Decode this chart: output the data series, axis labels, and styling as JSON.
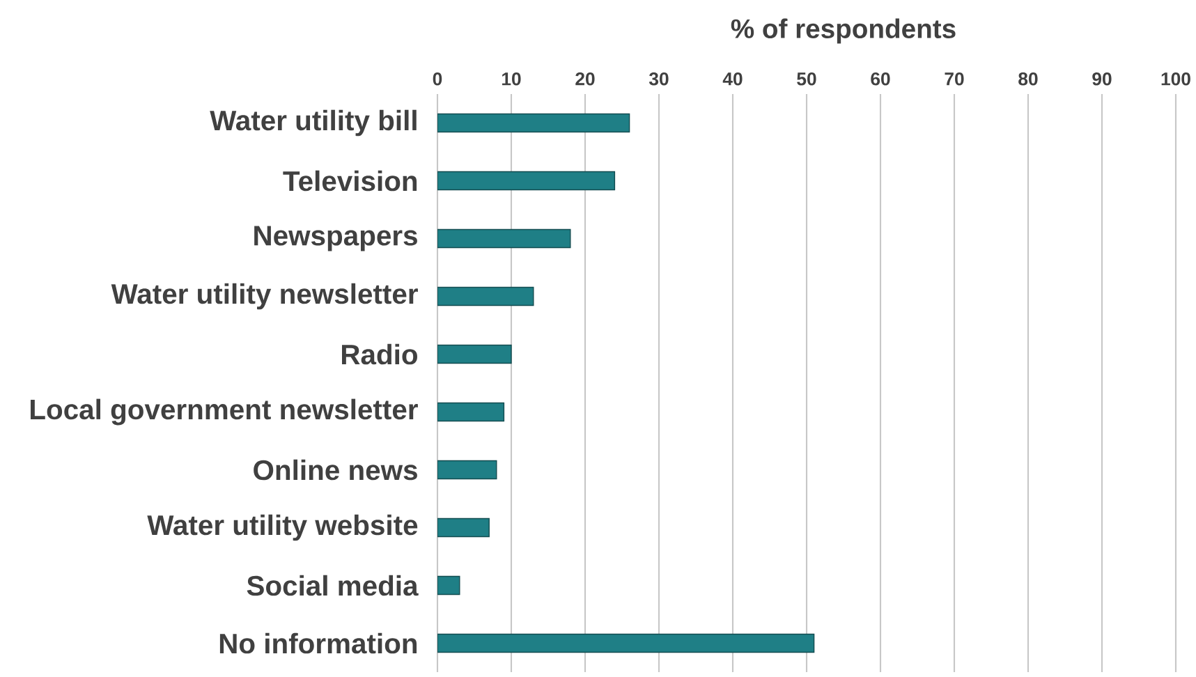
{
  "chart_data": {
    "type": "bar",
    "orientation": "horizontal",
    "xlabel": "% of respondents",
    "categories": [
      "Water utility bill",
      "Television",
      "Newspapers",
      "Water utility newsletter",
      "Radio",
      "Local government newsletter",
      "Online news",
      "Water utility website",
      "Social media",
      "No information"
    ],
    "values": [
      26,
      24,
      18,
      13,
      10,
      9,
      8,
      7,
      3,
      51
    ],
    "color": "#1f7f86",
    "xlim": [
      0,
      100
    ],
    "xticks": [
      0,
      10,
      20,
      30,
      40,
      50,
      60,
      70,
      80,
      90,
      100
    ],
    "grid": "x"
  }
}
